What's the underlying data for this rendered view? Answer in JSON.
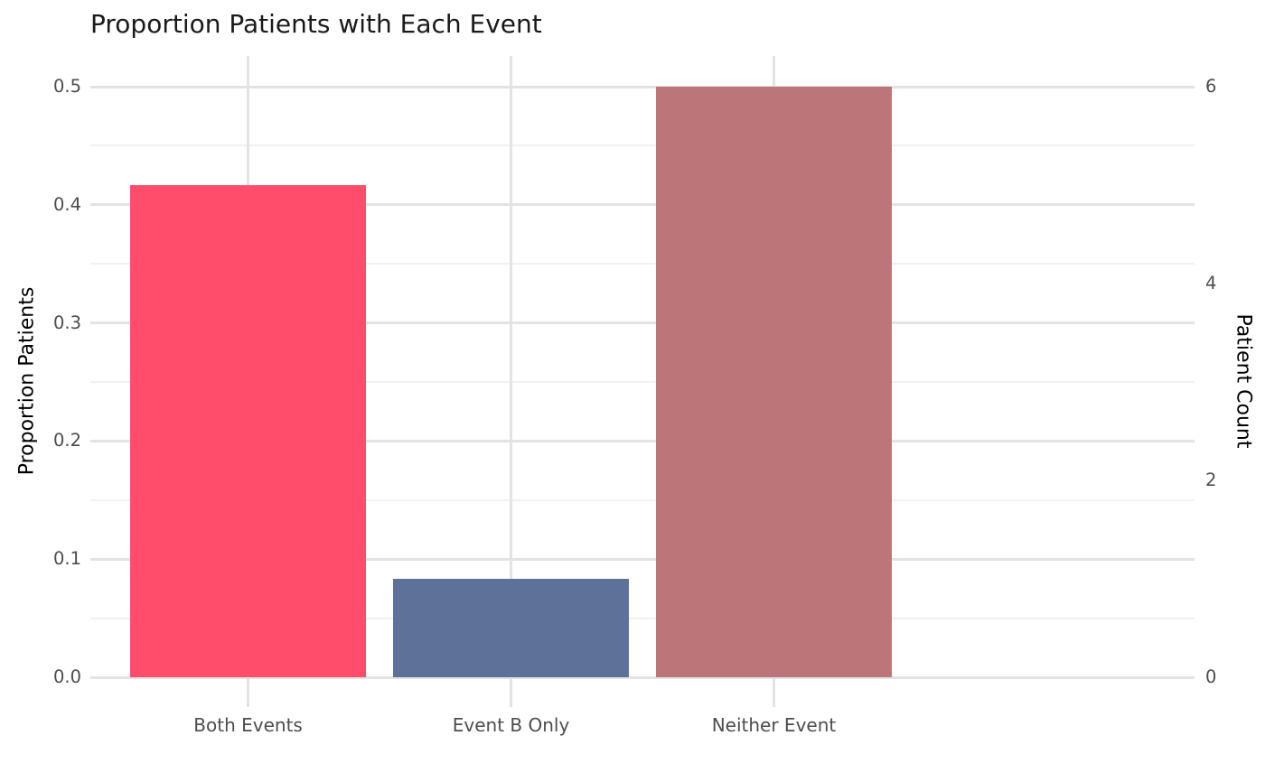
{
  "title": "Proportion Patients with Each Event",
  "colors": {
    "background": "#ffffff",
    "title_text": "#1a1a1a",
    "tick_text": "#4d4d4d",
    "axis_title_text": "#000000",
    "grid_major": "#e3e3e3",
    "grid_minor": "#f1f1f1"
  },
  "chart_data": {
    "type": "bar",
    "title": "Proportion Patients with Each Event",
    "categories": [
      "Both Events",
      "Event B Only",
      "Neither Event"
    ],
    "series": [
      {
        "name": "Proportion Patients",
        "values": [
          0.4167,
          0.0833,
          0.5
        ]
      },
      {
        "name": "Patient Count",
        "values": [
          5,
          1,
          6
        ]
      }
    ],
    "bar_colors": [
      "#ff4d6b",
      "#5d7199",
      "#bc7679"
    ],
    "axes": {
      "left": {
        "label": "Proportion Patients",
        "tick_values": [
          0.0,
          0.1,
          0.2,
          0.3,
          0.4,
          0.5
        ],
        "tick_labels": [
          "0.0",
          "0.1",
          "0.2",
          "0.3",
          "0.4",
          "0.5"
        ],
        "range": [
          0,
          0.5
        ]
      },
      "right": {
        "label": "Patient Count",
        "tick_values": [
          0,
          2,
          4,
          6
        ],
        "tick_labels": [
          "0",
          "2",
          "4",
          "6"
        ],
        "range": [
          0,
          6
        ]
      },
      "bottom": {
        "tick_labels": [
          "Both Events",
          "Event B Only",
          "Neither Event"
        ]
      }
    },
    "grid": {
      "show": true,
      "minor_step": 0.05,
      "legend_position": "none"
    }
  }
}
